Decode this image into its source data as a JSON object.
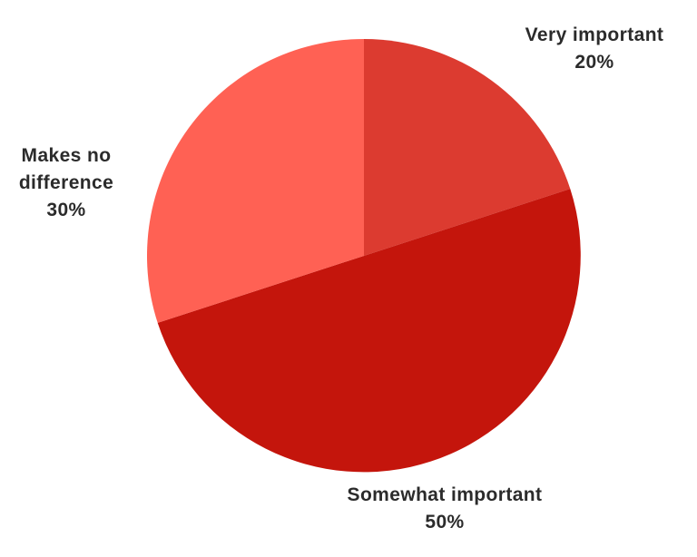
{
  "chart_data": {
    "type": "pie",
    "title": "",
    "start_angle_deg": 0,
    "direction": "clockwise",
    "legend_position": "none",
    "background_color": "#ffffff",
    "text_color": "#2b2b2b",
    "slices": [
      {
        "label": "Very important",
        "value": 20,
        "pct": "20%",
        "color": "#DC3B30"
      },
      {
        "label": "Somewhat important",
        "value": 50,
        "pct": "50%",
        "color": "#C4150C"
      },
      {
        "label": "Makes no difference",
        "value": 30,
        "pct": "30%",
        "color": "#FF6154"
      }
    ]
  }
}
